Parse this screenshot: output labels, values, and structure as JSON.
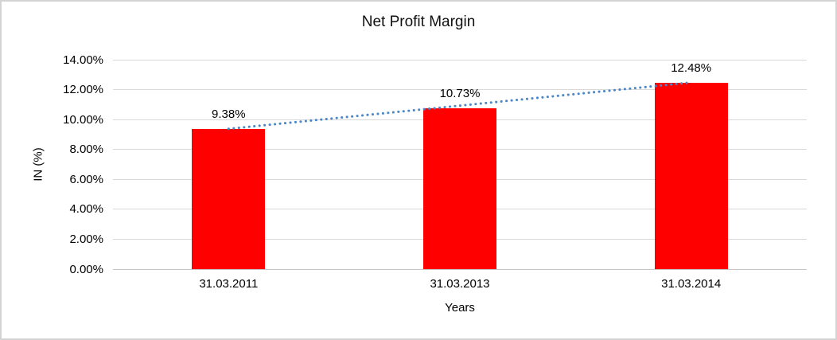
{
  "frame": {
    "border_color": "#d4d4d4",
    "background_color": "#ffffff"
  },
  "chart_data": {
    "type": "bar",
    "title": "Net Profit Margin",
    "xlabel": "Years",
    "ylabel": "IN (%)",
    "categories": [
      "31.03.2011",
      "31.03.2013",
      "31.03.2014"
    ],
    "values": [
      9.38,
      10.73,
      12.48
    ],
    "data_labels": [
      "9.38%",
      "10.73%",
      "12.48%"
    ],
    "y_ticks": [
      {
        "value": 0,
        "label": "0.00%"
      },
      {
        "value": 2,
        "label": "2.00%"
      },
      {
        "value": 4,
        "label": "4.00%"
      },
      {
        "value": 6,
        "label": "6.00%"
      },
      {
        "value": 8,
        "label": "8.00%"
      },
      {
        "value": 10,
        "label": "10.00%"
      },
      {
        "value": 12,
        "label": "12.00%"
      },
      {
        "value": 14,
        "label": "14.00%"
      }
    ],
    "ylim": [
      0,
      14
    ],
    "grid": true,
    "legend": false,
    "bar_color": "#ff0000",
    "gridline_color": "#d9d9d9",
    "trendline": {
      "type": "linear",
      "style": "dotted",
      "color": "#4a86c8",
      "start_value": 9.38,
      "end_value": 12.48
    }
  }
}
